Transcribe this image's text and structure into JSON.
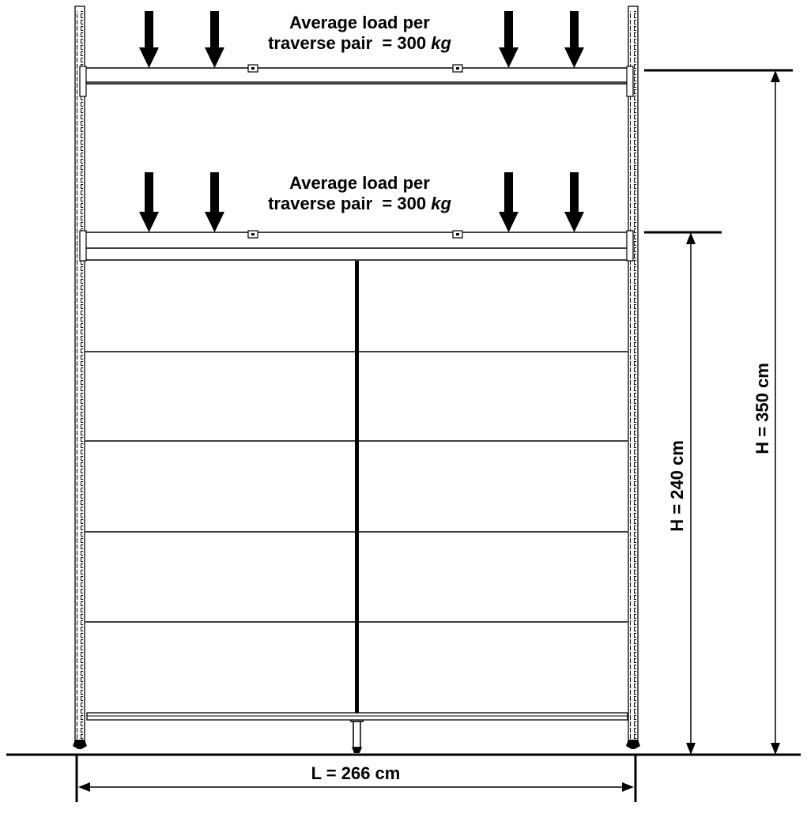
{
  "loads": {
    "top": {
      "line1": "Average load per",
      "line2_prefix": "traverse pair  = 300 ",
      "unit": "kg"
    },
    "middle": {
      "line1": "Average load per",
      "line2_prefix": "traverse pair  = 300 ",
      "unit": "kg"
    }
  },
  "dimensions": {
    "height_top": "H = 350 cm",
    "height_middle": "H = 240 cm",
    "length": "L = 266 cm"
  }
}
